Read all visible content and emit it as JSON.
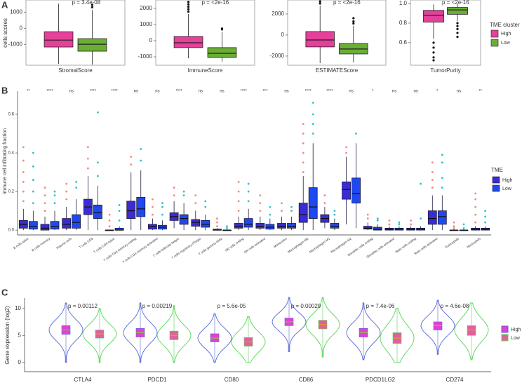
{
  "chart_data": [
    {
      "type": "box_facets",
      "label": "A",
      "ylabel": "cells scores",
      "legend_title": "TME cluster",
      "legend": "right",
      "series": [
        {
          "name": "High",
          "color": "#e5409a"
        },
        {
          "name": "Low",
          "color": "#6aae35"
        }
      ],
      "facets": [
        {
          "xlabel": "StromalScore",
          "annotation": "p = 3.4e-08",
          "ylim": [
            -2300,
            1750
          ],
          "yticks": [
            -1000,
            0,
            1000
          ],
          "boxes": [
            {
              "min": -2220,
              "q1": -1170,
              "median": -740,
              "q3": -220,
              "max": 1520,
              "outliers": []
            },
            {
              "min": -2260,
              "q1": -1430,
              "median": -1000,
              "q3": -650,
              "max": 1130,
              "outliers": [
                1300,
                1450
              ]
            }
          ]
        },
        {
          "xlabel": "ImmuneScore",
          "annotation": "p = <2e-16",
          "ylim": [
            -1520,
            2520
          ],
          "yticks": [
            -1000,
            0,
            1000,
            2000
          ],
          "boxes": [
            {
              "min": -1090,
              "q1": -430,
              "median": -130,
              "q3": 260,
              "max": 1650,
              "outliers": [
                1800,
                1950,
                2100,
                2250,
                2400
              ]
            },
            {
              "min": -1300,
              "q1": -1040,
              "median": -780,
              "q3": -430,
              "max": 560,
              "outliers": [
                700,
                750
              ]
            }
          ]
        },
        {
          "xlabel": "ESTIMATEScore",
          "annotation": "p = <2e-16",
          "ylim": [
            -2870,
            3330
          ],
          "yticks": [
            -2000,
            0,
            2000
          ],
          "boxes": [
            {
              "min": -2670,
              "q1": -1130,
              "median": -470,
              "q3": 330,
              "max": 2800,
              "outliers": [
                3000,
                3200
              ]
            },
            {
              "min": -2600,
              "q1": -1800,
              "median": -1330,
              "q3": -800,
              "max": 870,
              "outliers": [
                1100,
                1300,
                1600
              ]
            }
          ]
        },
        {
          "xlabel": "TumorPurity",
          "annotation": "p = <2e-16",
          "ylim": [
            0.37,
            1.036
          ],
          "yticks": [
            0.6,
            0.8,
            {
              "value": 1,
              "label": "1.0"
            }
          ],
          "boxes": [
            {
              "min": 0.64,
              "q1": 0.81,
              "median": 0.88,
              "q3": 0.93,
              "max": 0.99,
              "outliers": [
                0.6,
                0.55,
                0.5,
                0.45,
                0.42
              ]
            },
            {
              "min": 0.82,
              "q1": 0.89,
              "median": 0.935,
              "q3": 0.96,
              "max": 1.0,
              "outliers": [
                0.8,
                0.77,
                0.74,
                0.7,
                0.66
              ]
            }
          ]
        }
      ]
    },
    {
      "type": "box",
      "label": "B",
      "ylabel": "immune cell infiltrating fraction",
      "legend_title": "TME",
      "legend": "right",
      "categories": [
        "B cells naive",
        "B cells memory",
        "Plasma cells",
        "T cells CD8",
        "T cells CD4 naive",
        "T cells CD4 memory resting",
        "T cells CD4 memory activated",
        "T cells follicular helper",
        "T cells regulatory (Tregs)",
        "T cells gamma delta",
        "NK cells resting",
        "NK cells activated",
        "Monocytes",
        "Macrophages M0",
        "Macrophages M1",
        "Macrophages M2",
        "Dendritic cells resting",
        "Dendritic cells activated",
        "Mast cells resting",
        "Mast cells activated",
        "Eosinophils",
        "Neutrophils"
      ],
      "annotations": [
        "**",
        "****",
        "ns",
        "****",
        "****",
        "ns",
        "ns",
        "****",
        "ns",
        "ns",
        "****",
        "***",
        "ns",
        "****",
        "****",
        "ns",
        "*",
        "ns",
        "ns",
        "*",
        "ns",
        "**"
      ],
      "ylim": [
        -0.025,
        0.72
      ],
      "yticks": [
        {
          "value": 0,
          "label": "0.0"
        },
        0.2,
        0.4,
        0.6
      ],
      "series": [
        {
          "name": "High",
          "color": "#3b2bd4",
          "outlier_color": "#f08a80",
          "boxes": [
            {
              "min": 0,
              "q1": 0.01,
              "median": 0.03,
              "q3": 0.05,
              "max": 0.11,
              "outliers": [
                0.15,
                0.2,
                0.25,
                0.3,
                0.36,
                0.43
              ]
            },
            {
              "min": 0,
              "q1": 0,
              "median": 0.01,
              "q3": 0.03,
              "max": 0.07,
              "outliers": [
                0.1,
                0.14,
                0.18,
                0.22
              ]
            },
            {
              "min": 0,
              "q1": 0.01,
              "median": 0.03,
              "q3": 0.06,
              "max": 0.12,
              "outliers": [
                0.16,
                0.2,
                0.24
              ]
            },
            {
              "min": 0,
              "q1": 0.08,
              "median": 0.12,
              "q3": 0.16,
              "max": 0.28,
              "outliers": [
                0.32,
                0.37,
                0.43
              ]
            },
            {
              "min": 0,
              "q1": 0,
              "median": 0,
              "q3": 0,
              "max": 0,
              "outliers": [
                0.02,
                0.05,
                0.08
              ]
            },
            {
              "min": 0,
              "q1": 0.06,
              "median": 0.1,
              "q3": 0.15,
              "max": 0.3,
              "outliers": [
                0.34,
                0.38
              ]
            },
            {
              "min": 0,
              "q1": 0.005,
              "median": 0.02,
              "q3": 0.03,
              "max": 0.06,
              "outliers": [
                0.08,
                0.12,
                0.16
              ]
            },
            {
              "min": 0.01,
              "q1": 0.05,
              "median": 0.07,
              "q3": 0.09,
              "max": 0.15,
              "outliers": [
                0.18,
                0.22
              ]
            },
            {
              "min": 0,
              "q1": 0.02,
              "median": 0.04,
              "q3": 0.055,
              "max": 0.1,
              "outliers": [
                0.14,
                0.18
              ]
            },
            {
              "min": 0,
              "q1": 0,
              "median": 0,
              "q3": 0.005,
              "max": 0.01,
              "outliers": [
                0.02,
                0.04,
                0.06
              ]
            },
            {
              "min": 0,
              "q1": 0.01,
              "median": 0.02,
              "q3": 0.035,
              "max": 0.07,
              "outliers": [
                0.1,
                0.15,
                0.2,
                0.25
              ]
            },
            {
              "min": 0,
              "q1": 0.01,
              "median": 0.02,
              "q3": 0.035,
              "max": 0.07,
              "outliers": [
                0.1,
                0.14,
                0.18
              ]
            },
            {
              "min": 0,
              "q1": 0.01,
              "median": 0.02,
              "q3": 0.035,
              "max": 0.07,
              "outliers": [
                0.1,
                0.14
              ]
            },
            {
              "min": 0,
              "q1": 0.04,
              "median": 0.08,
              "q3": 0.14,
              "max": 0.28,
              "outliers": [
                0.3,
                0.35,
                0.4,
                0.45,
                0.5,
                0.55
              ]
            },
            {
              "min": 0.01,
              "q1": 0.04,
              "median": 0.06,
              "q3": 0.08,
              "max": 0.12,
              "outliers": [
                0.14,
                0.18
              ]
            },
            {
              "min": 0.03,
              "q1": 0.16,
              "median": 0.21,
              "q3": 0.25,
              "max": 0.38,
              "outliers": [
                0.4,
                0.43
              ]
            },
            {
              "min": 0,
              "q1": 0.005,
              "median": 0.01,
              "q3": 0.02,
              "max": 0.04,
              "outliers": [
                0.06,
                0.08
              ]
            },
            {
              "min": 0,
              "q1": 0,
              "median": 0.005,
              "q3": 0.01,
              "max": 0.02,
              "outliers": [
                0.03,
                0.05
              ]
            },
            {
              "min": 0,
              "q1": 0,
              "median": 0.005,
              "q3": 0.01,
              "max": 0.02,
              "outliers": [
                0.03,
                0.05
              ]
            },
            {
              "min": 0,
              "q1": 0.03,
              "median": 0.06,
              "q3": 0.1,
              "max": 0.18,
              "outliers": [
                0.22,
                0.26,
                0.3,
                0.35
              ]
            },
            {
              "min": 0,
              "q1": 0,
              "median": 0,
              "q3": 0,
              "max": 0.005,
              "outliers": [
                0.01,
                0.02,
                0.04
              ]
            },
            {
              "min": 0,
              "q1": 0,
              "median": 0.005,
              "q3": 0.01,
              "max": 0.02,
              "outliers": [
                0.04,
                0.08,
                0.12,
                0.16,
                0.19
              ]
            }
          ]
        },
        {
          "name": "Low",
          "color": "#1f48ee",
          "outlier_color": "#2cc4c8",
          "boxes": [
            {
              "min": 0,
              "q1": 0.005,
              "median": 0.02,
              "q3": 0.045,
              "max": 0.1,
              "outliers": [
                0.14,
                0.2,
                0.26,
                0.33,
                0.4
              ]
            },
            {
              "min": 0,
              "q1": 0.005,
              "median": 0.02,
              "q3": 0.045,
              "max": 0.1,
              "outliers": [
                0.14,
                0.18,
                0.2
              ]
            },
            {
              "min": 0,
              "q1": 0.01,
              "median": 0.04,
              "q3": 0.08,
              "max": 0.16,
              "outliers": [
                0.22,
                0.25
              ]
            },
            {
              "min": 0,
              "q1": 0.06,
              "median": 0.09,
              "q3": 0.13,
              "max": 0.23,
              "outliers": [
                0.28,
                0.35,
                0.61
              ]
            },
            {
              "min": 0,
              "q1": 0,
              "median": 0,
              "q3": 0.01,
              "max": 0.02,
              "outliers": [
                0.05,
                0.1,
                0.13
              ]
            },
            {
              "min": 0,
              "q1": 0.07,
              "median": 0.11,
              "q3": 0.17,
              "max": 0.31,
              "outliers": [
                0.36,
                0.42
              ]
            },
            {
              "min": 0,
              "q1": 0.005,
              "median": 0.015,
              "q3": 0.025,
              "max": 0.05,
              "outliers": [
                0.08,
                0.12,
                0.14
              ]
            },
            {
              "min": 0,
              "q1": 0.03,
              "median": 0.06,
              "q3": 0.08,
              "max": 0.14,
              "outliers": [
                0.18,
                0.2
              ]
            },
            {
              "min": 0,
              "q1": 0.015,
              "median": 0.03,
              "q3": 0.05,
              "max": 0.08,
              "outliers": [
                0.12,
                0.15
              ]
            },
            {
              "min": 0,
              "q1": 0,
              "median": 0,
              "q3": 0,
              "max": 0.005,
              "outliers": [
                0.01,
                0.02
              ]
            },
            {
              "min": 0,
              "q1": 0.015,
              "median": 0.03,
              "q3": 0.06,
              "max": 0.11,
              "outliers": [
                0.15,
                0.2,
                0.24
              ]
            },
            {
              "min": 0,
              "q1": 0.005,
              "median": 0.015,
              "q3": 0.03,
              "max": 0.06,
              "outliers": [
                0.08,
                0.12
              ]
            },
            {
              "min": 0,
              "q1": 0.01,
              "median": 0.02,
              "q3": 0.035,
              "max": 0.07,
              "outliers": [
                0.1,
                0.12
              ]
            },
            {
              "min": 0,
              "q1": 0.06,
              "median": 0.12,
              "q3": 0.22,
              "max": 0.45,
              "outliers": [
                0.5,
                0.55,
                0.6,
                0.66
              ]
            },
            {
              "min": 0,
              "q1": 0.01,
              "median": 0.02,
              "q3": 0.035,
              "max": 0.06,
              "outliers": [
                0.08,
                0.1
              ]
            },
            {
              "min": 0.01,
              "q1": 0.14,
              "median": 0.19,
              "q3": 0.27,
              "max": 0.45,
              "outliers": [
                0.5
              ]
            },
            {
              "min": 0,
              "q1": 0,
              "median": 0.005,
              "q3": 0.015,
              "max": 0.03,
              "outliers": [
                0.05,
                0.06
              ]
            },
            {
              "min": 0,
              "q1": 0,
              "median": 0.005,
              "q3": 0.01,
              "max": 0.02,
              "outliers": [
                0.03,
                0.04
              ]
            },
            {
              "min": 0,
              "q1": 0,
              "median": 0.005,
              "q3": 0.01,
              "max": 0.02,
              "outliers": [
                0.06,
                0.24
              ]
            },
            {
              "min": 0,
              "q1": 0.03,
              "median": 0.07,
              "q3": 0.1,
              "max": 0.18,
              "outliers": [
                0.22,
                0.27,
                0.35,
                0.39
              ]
            },
            {
              "min": 0,
              "q1": 0,
              "median": 0,
              "q3": 0,
              "max": 0.005,
              "outliers": [
                0.01,
                0.03
              ]
            },
            {
              "min": 0,
              "q1": 0,
              "median": 0.005,
              "q3": 0.01,
              "max": 0.02,
              "outliers": [
                0.04,
                0.07,
                0.1
              ]
            }
          ]
        }
      ]
    },
    {
      "type": "violin",
      "label": "C",
      "ylabel": "Gene expression (log2)",
      "legend": "right",
      "categories": [
        "CTLA4",
        "PDCD1",
        "CD80",
        "CD86",
        "PDCD1LG2",
        "CD274"
      ],
      "annotations": [
        "p = 0.00112",
        "p = 0.00219",
        "p = 5.6e-05",
        "p = 0.00029",
        "p = 7.4e-06",
        "p = 4.6e-08"
      ],
      "ylim": [
        -1.7,
        11.9
      ],
      "yticks": [
        0,
        5,
        10
      ],
      "series": [
        {
          "name": "High",
          "color": "#5566d8",
          "box_color": "#e23fd6",
          "median_color": "#8cbf3a",
          "violins": [
            {
              "min": 0,
              "q1": 5.2,
              "median": 6,
              "q3": 6.8,
              "max": 11
            },
            {
              "min": 0,
              "q1": 4.7,
              "median": 5.5,
              "q3": 6.3,
              "max": 11
            },
            {
              "min": 0,
              "q1": 3.8,
              "median": 4.5,
              "q3": 5.3,
              "max": 9
            },
            {
              "min": 2,
              "q1": 6.8,
              "median": 7.5,
              "q3": 8.2,
              "max": 12
            },
            {
              "min": 0.5,
              "q1": 4.7,
              "median": 5.5,
              "q3": 6.3,
              "max": 11
            },
            {
              "min": 1.5,
              "q1": 6,
              "median": 6.8,
              "q3": 7.5,
              "max": 11.5
            }
          ]
        },
        {
          "name": "Low",
          "color": "#55d455",
          "box_color": "#e0609e",
          "median_color": "#d9a020",
          "violins": [
            {
              "min": 0,
              "q1": 4.5,
              "median": 5.3,
              "q3": 6,
              "max": 10
            },
            {
              "min": 0,
              "q1": 4.2,
              "median": 5,
              "q3": 5.8,
              "max": 10.5
            },
            {
              "min": 0,
              "q1": 3,
              "median": 3.8,
              "q3": 4.6,
              "max": 8.5
            },
            {
              "min": 1,
              "q1": 6.2,
              "median": 7,
              "q3": 7.8,
              "max": 12
            },
            {
              "min": 0,
              "q1": 3.5,
              "median": 4.5,
              "q3": 5.5,
              "max": 10
            },
            {
              "min": 0.5,
              "q1": 5,
              "median": 6,
              "q3": 6.8,
              "max": 11
            }
          ]
        }
      ]
    }
  ]
}
